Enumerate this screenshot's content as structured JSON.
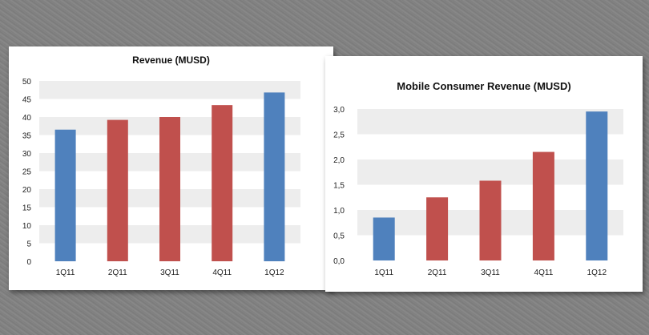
{
  "chart_data": [
    {
      "type": "bar",
      "title": "Revenue (MUSD)",
      "categories": [
        "1Q11",
        "2Q11",
        "3Q11",
        "4Q11",
        "1Q12"
      ],
      "values": [
        36.5,
        39.2,
        40.0,
        43.3,
        46.8
      ],
      "ylim": [
        0,
        50
      ],
      "yticks": [
        "0",
        "5",
        "10",
        "15",
        "20",
        "25",
        "30",
        "35",
        "40",
        "45",
        "50"
      ],
      "grid": true,
      "colors": [
        "#4f81bd",
        "#c0504d",
        "#c0504d",
        "#c0504d",
        "#4f81bd"
      ]
    },
    {
      "type": "bar",
      "title": "Mobile Consumer Revenue (MUSD)",
      "categories": [
        "1Q11",
        "2Q11",
        "3Q11",
        "4Q11",
        "1Q12"
      ],
      "values": [
        0.85,
        1.25,
        1.58,
        2.15,
        2.95
      ],
      "ylim": [
        0,
        3.0
      ],
      "yticks": [
        "0,0",
        "0,5",
        "1,0",
        "1,5",
        "2,0",
        "2,5",
        "3,0"
      ],
      "grid": true,
      "colors": [
        "#4f81bd",
        "#c0504d",
        "#c0504d",
        "#c0504d",
        "#4f81bd"
      ]
    }
  ]
}
